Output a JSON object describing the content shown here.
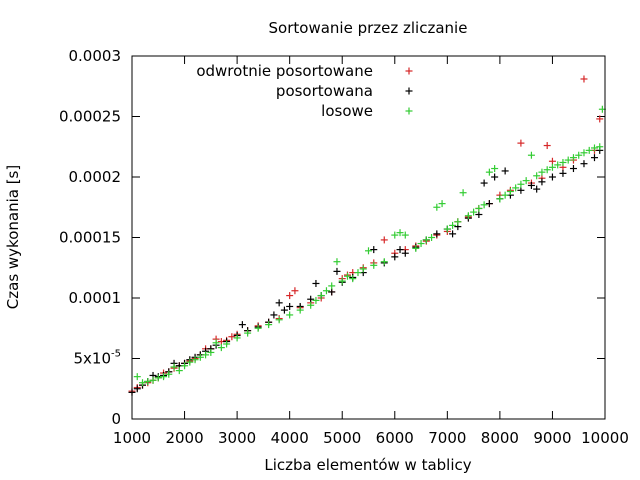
{
  "chart_data": {
    "type": "scatter",
    "title": "Sortowanie przez zliczanie",
    "xlabel": "Liczba elementów w tablicy",
    "ylabel": "Czas wykonania [s]",
    "xlim": [
      1000,
      10000
    ],
    "ylim": [
      0,
      0.0003
    ],
    "x_ticks": [
      {
        "value": 1000,
        "label": "1000"
      },
      {
        "value": 2000,
        "label": "2000"
      },
      {
        "value": 3000,
        "label": "3000"
      },
      {
        "value": 4000,
        "label": "4000"
      },
      {
        "value": 5000,
        "label": "5000"
      },
      {
        "value": 6000,
        "label": "6000"
      },
      {
        "value": 7000,
        "label": "7000"
      },
      {
        "value": 8000,
        "label": "8000"
      },
      {
        "value": 9000,
        "label": "9000"
      },
      {
        "value": 10000,
        "label": "10000"
      }
    ],
    "y_ticks": [
      {
        "value": 0,
        "label": "0"
      },
      {
        "value": 5e-05,
        "label": "5x10",
        "exp": "-5"
      },
      {
        "value": 0.0001,
        "label": "0.0001"
      },
      {
        "value": 0.00015,
        "label": "0.00015"
      },
      {
        "value": 0.0002,
        "label": "0.0002"
      },
      {
        "value": 0.00025,
        "label": "0.00025"
      },
      {
        "value": 0.0003,
        "label": "0.0003"
      }
    ],
    "grid": false,
    "legend_position": "top-left",
    "marker": "+",
    "series": [
      {
        "name": "odwrotnie posortowane",
        "color": "#d62728",
        "points": [
          [
            1000,
            2.3e-05
          ],
          [
            1100,
            2.6e-05
          ],
          [
            1200,
            2.8e-05
          ],
          [
            1300,
            3e-05
          ],
          [
            1400,
            3.2e-05
          ],
          [
            1500,
            3.4e-05
          ],
          [
            1600,
            3.8e-05
          ],
          [
            1700,
            3.9e-05
          ],
          [
            1800,
            4.2e-05
          ],
          [
            1900,
            4.4e-05
          ],
          [
            2000,
            4.6e-05
          ],
          [
            2100,
            4.8e-05
          ],
          [
            2200,
            5e-05
          ],
          [
            2300,
            5.3e-05
          ],
          [
            2400,
            5.8e-05
          ],
          [
            2500,
            5.8e-05
          ],
          [
            2600,
            6.6e-05
          ],
          [
            2700,
            6.4e-05
          ],
          [
            2800,
            6.5e-05
          ],
          [
            2900,
            6.8e-05
          ],
          [
            3000,
            7e-05
          ],
          [
            3200,
            7.3e-05
          ],
          [
            3400,
            7.7e-05
          ],
          [
            3600,
            8e-05
          ],
          [
            3800,
            8.3e-05
          ],
          [
            4000,
            0.000102
          ],
          [
            4100,
            0.000106
          ],
          [
            4200,
            9.2e-05
          ],
          [
            4400,
            9.6e-05
          ],
          [
            4600,
            0.0001
          ],
          [
            4800,
            0.000105
          ],
          [
            5000,
            0.000116
          ],
          [
            5100,
            0.000119
          ],
          [
            5200,
            0.000121
          ],
          [
            5400,
            0.000125
          ],
          [
            5600,
            0.000129
          ],
          [
            5800,
            0.000148
          ],
          [
            6000,
            0.000137
          ],
          [
            6200,
            0.00014
          ],
          [
            6400,
            0.000143
          ],
          [
            6600,
            0.000147
          ],
          [
            6800,
            0.000152
          ],
          [
            7000,
            0.000155
          ],
          [
            7200,
            0.000163
          ],
          [
            7400,
            0.000167
          ],
          [
            7600,
            0.000174
          ],
          [
            7800,
            0.000178
          ],
          [
            8000,
            0.000185
          ],
          [
            8200,
            0.000189
          ],
          [
            8400,
            0.000228
          ],
          [
            8600,
            0.000195
          ],
          [
            8800,
            0.000199
          ],
          [
            8900,
            0.000226
          ],
          [
            9000,
            0.000213
          ],
          [
            9200,
            0.000208
          ],
          [
            9400,
            0.000214
          ],
          [
            9600,
            0.000281
          ],
          [
            9800,
            0.000222
          ],
          [
            9900,
            0.000248
          ]
        ]
      },
      {
        "name": "posortowana",
        "color": "#000000",
        "points": [
          [
            1000,
            2.2e-05
          ],
          [
            1100,
            2.5e-05
          ],
          [
            1200,
            2.8e-05
          ],
          [
            1300,
            3.1e-05
          ],
          [
            1400,
            3.6e-05
          ],
          [
            1500,
            3.5e-05
          ],
          [
            1600,
            3.6e-05
          ],
          [
            1700,
            3.9e-05
          ],
          [
            1800,
            4.6e-05
          ],
          [
            1900,
            4.4e-05
          ],
          [
            2000,
            4.6e-05
          ],
          [
            2100,
            4.9e-05
          ],
          [
            2200,
            5.1e-05
          ],
          [
            2300,
            5.3e-05
          ],
          [
            2400,
            5.6e-05
          ],
          [
            2500,
            5.8e-05
          ],
          [
            2600,
            6.1e-05
          ],
          [
            2800,
            6.4e-05
          ],
          [
            3000,
            6.9e-05
          ],
          [
            3100,
            7.8e-05
          ],
          [
            3200,
            7.3e-05
          ],
          [
            3400,
            7.6e-05
          ],
          [
            3600,
            8e-05
          ],
          [
            3700,
            8.6e-05
          ],
          [
            3800,
            9.6e-05
          ],
          [
            3900,
            9e-05
          ],
          [
            4000,
            9.3e-05
          ],
          [
            4200,
            9.3e-05
          ],
          [
            4400,
            9.9e-05
          ],
          [
            4500,
            0.000112
          ],
          [
            4600,
            0.000102
          ],
          [
            4800,
            0.000105
          ],
          [
            4900,
            0.000122
          ],
          [
            5000,
            0.000113
          ],
          [
            5200,
            0.000117
          ],
          [
            5400,
            0.000121
          ],
          [
            5600,
            0.00014
          ],
          [
            5800,
            0.000129
          ],
          [
            6000,
            0.000134
          ],
          [
            6100,
            0.00014
          ],
          [
            6200,
            0.000137
          ],
          [
            6400,
            0.000142
          ],
          [
            6600,
            0.000148
          ],
          [
            6800,
            0.000153
          ],
          [
            7000,
            0.000157
          ],
          [
            7100,
            0.000153
          ],
          [
            7200,
            0.000159
          ],
          [
            7400,
            0.000166
          ],
          [
            7600,
            0.000169
          ],
          [
            7700,
            0.000195
          ],
          [
            7800,
            0.000178
          ],
          [
            7900,
            0.0002
          ],
          [
            8000,
            0.000182
          ],
          [
            8100,
            0.000205
          ],
          [
            8200,
            0.000185
          ],
          [
            8400,
            0.000189
          ],
          [
            8600,
            0.000193
          ],
          [
            8700,
            0.00019
          ],
          [
            8800,
            0.000196
          ],
          [
            9000,
            0.0002
          ],
          [
            9200,
            0.000203
          ],
          [
            9400,
            0.000207
          ],
          [
            9600,
            0.000211
          ],
          [
            9800,
            0.000216
          ],
          [
            9900,
            0.000222
          ]
        ]
      },
      {
        "name": "losowe",
        "color": "#33cc33",
        "points": [
          [
            1100,
            3.5e-05
          ],
          [
            1200,
            3e-05
          ],
          [
            1300,
            3.1e-05
          ],
          [
            1400,
            3.2e-05
          ],
          [
            1500,
            3.4e-05
          ],
          [
            1600,
            3.5e-05
          ],
          [
            1700,
            3.7e-05
          ],
          [
            1800,
            4.3e-05
          ],
          [
            1900,
            4e-05
          ],
          [
            2000,
            4.4e-05
          ],
          [
            2100,
            4.7e-05
          ],
          [
            2200,
            4.9e-05
          ],
          [
            2300,
            5.1e-05
          ],
          [
            2400,
            5.3e-05
          ],
          [
            2500,
            5.5e-05
          ],
          [
            2600,
            6.3e-05
          ],
          [
            2700,
            5.9e-05
          ],
          [
            2800,
            6.2e-05
          ],
          [
            3000,
            6.7e-05
          ],
          [
            3200,
            7.1e-05
          ],
          [
            3400,
            7.5e-05
          ],
          [
            3600,
            7.8e-05
          ],
          [
            3800,
            8.2e-05
          ],
          [
            4000,
            8.6e-05
          ],
          [
            4200,
            9e-05
          ],
          [
            4400,
            9.4e-05
          ],
          [
            4500,
            9.8e-05
          ],
          [
            4600,
            0.000102
          ],
          [
            4700,
            0.000106
          ],
          [
            4800,
            0.00011
          ],
          [
            4900,
            0.00013
          ],
          [
            5000,
            0.000114
          ],
          [
            5100,
            0.000118
          ],
          [
            5200,
            0.000116
          ],
          [
            5300,
            0.000121
          ],
          [
            5400,
            0.000124
          ],
          [
            5500,
            0.000139
          ],
          [
            5600,
            0.000127
          ],
          [
            5800,
            0.00013
          ],
          [
            6000,
            0.000152
          ],
          [
            6100,
            0.000154
          ],
          [
            6200,
            0.000152
          ],
          [
            6400,
            0.000141
          ],
          [
            6500,
            0.000145
          ],
          [
            6600,
            0.000148
          ],
          [
            6700,
            0.00015
          ],
          [
            6800,
            0.000175
          ],
          [
            6900,
            0.000178
          ],
          [
            7000,
            0.000157
          ],
          [
            7100,
            0.00016
          ],
          [
            7200,
            0.000163
          ],
          [
            7300,
            0.000187
          ],
          [
            7400,
            0.000168
          ],
          [
            7500,
            0.000171
          ],
          [
            7600,
            0.000174
          ],
          [
            7700,
            0.000177
          ],
          [
            7800,
            0.000204
          ],
          [
            7900,
            0.000207
          ],
          [
            8000,
            0.000182
          ],
          [
            8100,
            0.000185
          ],
          [
            8200,
            0.000188
          ],
          [
            8300,
            0.000191
          ],
          [
            8400,
            0.000194
          ],
          [
            8500,
            0.000197
          ],
          [
            8600,
            0.000218
          ],
          [
            8700,
            0.000201
          ],
          [
            8800,
            0.000204
          ],
          [
            8900,
            0.000206
          ],
          [
            9000,
            0.000208
          ],
          [
            9100,
            0.00021
          ],
          [
            9200,
            0.000212
          ],
          [
            9300,
            0.000214
          ],
          [
            9400,
            0.000216
          ],
          [
            9500,
            0.000218
          ],
          [
            9600,
            0.00022
          ],
          [
            9700,
            0.000222
          ],
          [
            9800,
            0.000224
          ],
          [
            9900,
            0.000225
          ],
          [
            9950,
            0.000256
          ]
        ]
      }
    ]
  }
}
